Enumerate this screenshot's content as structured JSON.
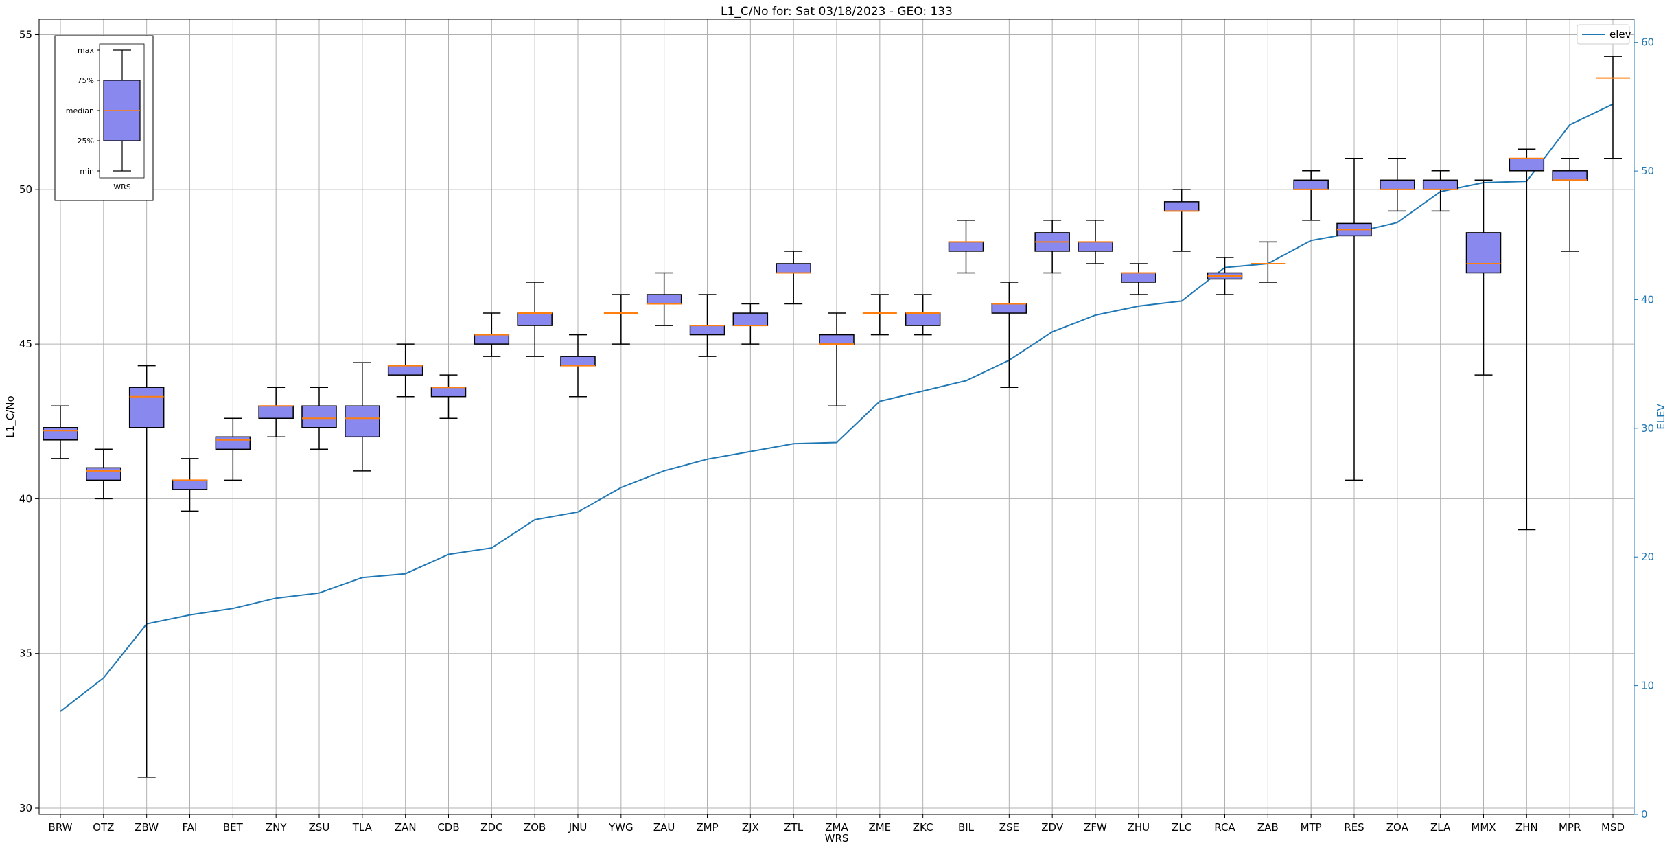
{
  "chart_data": {
    "type": "box",
    "title": "L1_C/No for: Sat 03/18/2023 - GEO: 133",
    "xlabel": "WRS",
    "ylabel": "L1_C/No",
    "y2label": "ELEV",
    "ylim": [
      29.8,
      55.5
    ],
    "y2lim": [
      0,
      61.8
    ],
    "yticks": [
      30,
      35,
      40,
      45,
      50,
      55
    ],
    "y2ticks": [
      0,
      10,
      20,
      30,
      40,
      50,
      60
    ],
    "grid": true,
    "box_color": "#8888ee",
    "median_color": "#ff7f0e",
    "line_color": "#1f77b4",
    "legend": {
      "entries": [
        "elev"
      ],
      "position": "top-right"
    },
    "categories": [
      "BRW",
      "OTZ",
      "ZBW",
      "FAI",
      "BET",
      "ZNY",
      "ZSU",
      "TLA",
      "ZAN",
      "CDB",
      "ZDC",
      "ZOB",
      "JNU",
      "YWG",
      "ZAU",
      "ZMP",
      "ZJX",
      "ZTL",
      "ZMA",
      "ZME",
      "ZKC",
      "BIL",
      "ZSE",
      "ZDV",
      "ZFW",
      "ZHU",
      "ZLC",
      "RCA",
      "ZAB",
      "MTP",
      "RES",
      "ZOA",
      "ZLA",
      "MMX",
      "ZHN",
      "MPR",
      "MSD"
    ],
    "boxes": [
      {
        "min": 41.3,
        "q1": 41.9,
        "median": 42.2,
        "q3": 42.3,
        "max": 43.0
      },
      {
        "min": 40.0,
        "q1": 40.6,
        "median": 40.9,
        "q3": 41.0,
        "max": 41.6
      },
      {
        "min": 31.0,
        "q1": 42.3,
        "median": 43.3,
        "q3": 43.6,
        "max": 44.3
      },
      {
        "min": 39.6,
        "q1": 40.3,
        "median": 40.6,
        "q3": 40.6,
        "max": 41.3
      },
      {
        "min": 40.6,
        "q1": 41.6,
        "median": 41.9,
        "q3": 42.0,
        "max": 42.6
      },
      {
        "min": 42.0,
        "q1": 42.6,
        "median": 43.0,
        "q3": 43.0,
        "max": 43.6
      },
      {
        "min": 41.6,
        "q1": 42.3,
        "median": 42.6,
        "q3": 43.0,
        "max": 43.6
      },
      {
        "min": 40.9,
        "q1": 42.0,
        "median": 42.6,
        "q3": 43.0,
        "max": 44.4
      },
      {
        "min": 43.3,
        "q1": 44.0,
        "median": 44.3,
        "q3": 44.3,
        "max": 45.0
      },
      {
        "min": 42.6,
        "q1": 43.3,
        "median": 43.6,
        "q3": 43.6,
        "max": 44.0
      },
      {
        "min": 44.6,
        "q1": 45.0,
        "median": 45.3,
        "q3": 45.3,
        "max": 46.0
      },
      {
        "min": 44.6,
        "q1": 45.6,
        "median": 46.0,
        "q3": 46.0,
        "max": 47.0
      },
      {
        "min": 43.3,
        "q1": 44.3,
        "median": 44.3,
        "q3": 44.6,
        "max": 45.3
      },
      {
        "min": 45.0,
        "q1": 46.0,
        "median": 46.0,
        "q3": 46.0,
        "max": 46.6
      },
      {
        "min": 45.6,
        "q1": 46.3,
        "median": 46.3,
        "q3": 46.6,
        "max": 47.3
      },
      {
        "min": 44.6,
        "q1": 45.3,
        "median": 45.6,
        "q3": 45.6,
        "max": 46.6
      },
      {
        "min": 45.0,
        "q1": 45.6,
        "median": 45.6,
        "q3": 46.0,
        "max": 46.3
      },
      {
        "min": 46.3,
        "q1": 47.3,
        "median": 47.3,
        "q3": 47.6,
        "max": 48.0
      },
      {
        "min": 43.0,
        "q1": 45.0,
        "median": 45.0,
        "q3": 45.3,
        "max": 46.0
      },
      {
        "min": 45.3,
        "q1": 46.0,
        "median": 46.0,
        "q3": 46.0,
        "max": 46.6
      },
      {
        "min": 45.3,
        "q1": 45.6,
        "median": 46.0,
        "q3": 46.0,
        "max": 46.6
      },
      {
        "min": 47.3,
        "q1": 48.0,
        "median": 48.3,
        "q3": 48.3,
        "max": 49.0
      },
      {
        "min": 43.6,
        "q1": 46.0,
        "median": 46.3,
        "q3": 46.3,
        "max": 47.0
      },
      {
        "min": 47.3,
        "q1": 48.0,
        "median": 48.3,
        "q3": 48.6,
        "max": 49.0
      },
      {
        "min": 47.6,
        "q1": 48.0,
        "median": 48.3,
        "q3": 48.3,
        "max": 49.0
      },
      {
        "min": 46.6,
        "q1": 47.0,
        "median": 47.3,
        "q3": 47.3,
        "max": 47.6
      },
      {
        "min": 48.0,
        "q1": 49.3,
        "median": 49.3,
        "q3": 49.6,
        "max": 50.0
      },
      {
        "min": 46.6,
        "q1": 47.1,
        "median": 47.2,
        "q3": 47.3,
        "max": 47.8
      },
      {
        "min": 47.0,
        "q1": 47.6,
        "median": 47.6,
        "q3": 47.6,
        "max": 48.3
      },
      {
        "min": 49.0,
        "q1": 50.0,
        "median": 50.0,
        "q3": 50.3,
        "max": 50.6
      },
      {
        "min": 40.6,
        "q1": 48.5,
        "median": 48.7,
        "q3": 48.9,
        "max": 51.0
      },
      {
        "min": 49.3,
        "q1": 50.0,
        "median": 50.0,
        "q3": 50.3,
        "max": 51.0
      },
      {
        "min": 49.3,
        "q1": 50.0,
        "median": 50.0,
        "q3": 50.3,
        "max": 50.6
      },
      {
        "min": 44.0,
        "q1": 47.3,
        "median": 47.6,
        "q3": 48.6,
        "max": 50.3
      },
      {
        "min": 39.0,
        "q1": 50.6,
        "median": 51.0,
        "q3": 51.0,
        "max": 51.3
      },
      {
        "min": 48.0,
        "q1": 50.3,
        "median": 50.3,
        "q3": 50.6,
        "max": 51.0
      },
      {
        "min": 51.0,
        "q1": 53.6,
        "median": 53.6,
        "q3": 53.6,
        "max": 54.3
      }
    ],
    "series": [
      {
        "name": "elev",
        "values": [
          8.0,
          10.6,
          14.8,
          15.5,
          16.0,
          16.8,
          17.2,
          18.4,
          18.7,
          20.2,
          20.7,
          22.9,
          23.5,
          25.4,
          26.7,
          27.6,
          28.2,
          28.8,
          28.9,
          32.1,
          32.9,
          33.7,
          35.3,
          37.5,
          38.8,
          39.5,
          39.9,
          42.5,
          42.8,
          44.6,
          45.2,
          46.0,
          48.4,
          49.1,
          49.2,
          53.6,
          55.2
        ]
      }
    ]
  },
  "legend_key": {
    "labels": [
      "max",
      "75%",
      "median",
      "25%",
      "min"
    ],
    "xlabel": "WRS"
  }
}
